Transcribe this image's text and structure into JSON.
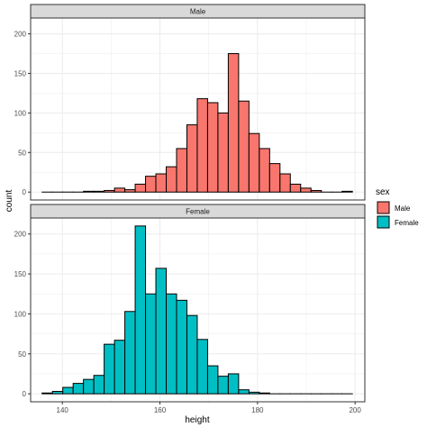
{
  "chart_data": {
    "type": "histogram",
    "xlabel": "height",
    "ylabel": "count",
    "xlim": [
      133.5,
      202
    ],
    "x_ticks": [
      140,
      160,
      180,
      200
    ],
    "grid": true,
    "legend_position": "right",
    "legend": {
      "title": "sex",
      "items": [
        {
          "label": "Male",
          "color": "#F8766D"
        },
        {
          "label": "Female",
          "color": "#00BFC4"
        }
      ]
    },
    "bins": {
      "start": 135.85,
      "width": 2.12,
      "count": 30
    },
    "facets": [
      {
        "label": "Male",
        "color": "#F8766D",
        "ylim": [
          -10,
          220
        ],
        "y_ticks": [
          0,
          50,
          100,
          150,
          200
        ],
        "counts": [
          0,
          0,
          0,
          0,
          1,
          1,
          2,
          5,
          3,
          10,
          20,
          23,
          32,
          55,
          85,
          118,
          113,
          100,
          175,
          115,
          74,
          55,
          36,
          23,
          10,
          5,
          2,
          0,
          0,
          1
        ]
      },
      {
        "label": "Female",
        "color": "#00BFC4",
        "ylim": [
          -10,
          220
        ],
        "y_ticks": [
          0,
          50,
          100,
          150,
          200
        ],
        "counts": [
          1,
          3,
          8,
          13,
          18,
          23,
          62,
          67,
          103,
          210,
          125,
          157,
          125,
          117,
          98,
          68,
          35,
          22,
          25,
          5,
          2,
          1,
          0,
          0,
          0,
          0,
          0,
          0,
          0,
          0
        ]
      }
    ]
  }
}
